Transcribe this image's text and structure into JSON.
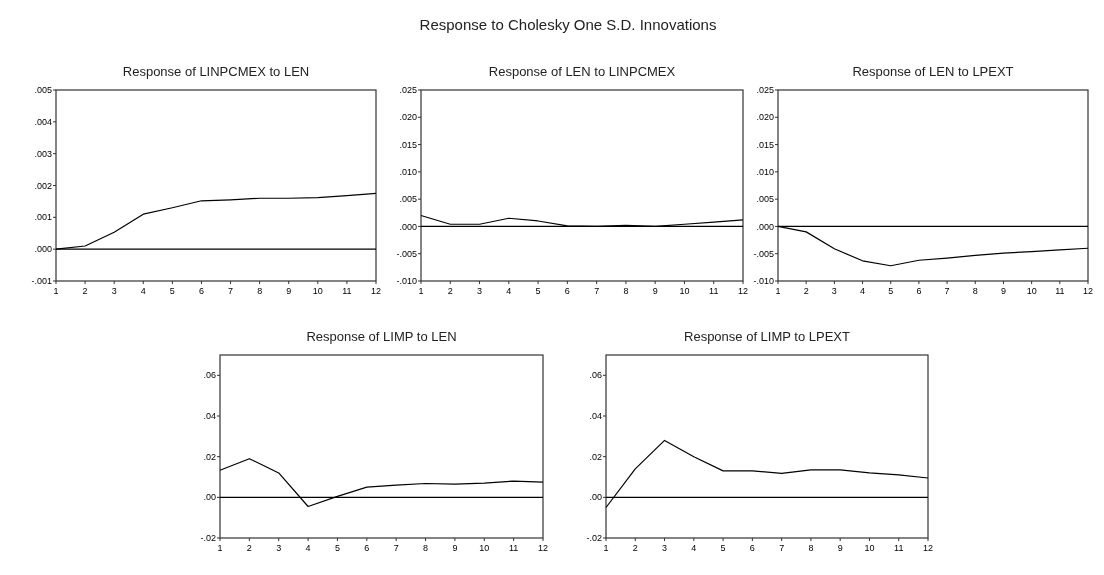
{
  "chart_data": [
    {
      "type": "line",
      "title": "Response of LINPCMEX to LEN",
      "annotations": [
        "Response to Cholesky One S.D. Innovations"
      ],
      "x": [
        1,
        2,
        3,
        4,
        5,
        6,
        7,
        8,
        9,
        10,
        11,
        12
      ],
      "xlim": [
        1,
        12
      ],
      "xticks": [
        1,
        2,
        3,
        4,
        5,
        6,
        7,
        8,
        9,
        10,
        11,
        12
      ],
      "ylim": [
        -0.001,
        0.005
      ],
      "yticks": [
        {
          "value": -0.001,
          "label": "-.001"
        },
        {
          "value": 0,
          "label": ".000"
        },
        {
          "value": 0.001,
          "label": ".001"
        },
        {
          "value": 0.002,
          "label": ".002"
        },
        {
          "value": 0.003,
          "label": ".003"
        },
        {
          "value": 0.004,
          "label": ".004"
        },
        {
          "value": 0.005,
          "label": ".005"
        }
      ],
      "series": [
        {
          "color": "#000000",
          "values": [
            0.0,
            0.0001,
            0.00053,
            0.0011,
            0.0013,
            0.00152,
            0.00155,
            0.0016,
            0.0016,
            0.00162,
            0.00168,
            0.00175
          ]
        }
      ],
      "ref_lines": [
        {
          "axis": "y",
          "value": 0,
          "color": "#000000"
        }
      ]
    },
    {
      "type": "line",
      "title": "Response of LEN to LINPCMEX",
      "x": [
        1,
        2,
        3,
        4,
        5,
        6,
        7,
        8,
        9,
        10,
        11,
        12
      ],
      "xlim": [
        1,
        12
      ],
      "xticks": [
        1,
        2,
        3,
        4,
        5,
        6,
        7,
        8,
        9,
        10,
        11,
        12
      ],
      "ylim": [
        -0.01,
        0.025
      ],
      "yticks": [
        {
          "value": -0.01,
          "label": "-.010"
        },
        {
          "value": -0.005,
          "label": "-.005"
        },
        {
          "value": 0,
          "label": ".000"
        },
        {
          "value": 0.005,
          "label": ".005"
        },
        {
          "value": 0.01,
          "label": ".010"
        },
        {
          "value": 0.015,
          "label": ".015"
        },
        {
          "value": 0.02,
          "label": ".020"
        },
        {
          "value": 0.025,
          "label": ".025"
        }
      ],
      "series": [
        {
          "color": "#000000",
          "values": [
            0.002,
            0.0004,
            0.0004,
            0.0015,
            0.001,
            0.0001,
            0.0,
            0.0002,
            0.0,
            0.0004,
            0.0008,
            0.0012
          ]
        }
      ],
      "ref_lines": [
        {
          "axis": "y",
          "value": 0,
          "color": "#000000"
        }
      ]
    },
    {
      "type": "line",
      "title": "Response of LEN to LPEXT",
      "x": [
        1,
        2,
        3,
        4,
        5,
        6,
        7,
        8,
        9,
        10,
        11,
        12
      ],
      "xlim": [
        1,
        12
      ],
      "xticks": [
        1,
        2,
        3,
        4,
        5,
        6,
        7,
        8,
        9,
        10,
        11,
        12
      ],
      "ylim": [
        -0.01,
        0.025
      ],
      "yticks": [
        {
          "value": -0.01,
          "label": "-.010"
        },
        {
          "value": -0.005,
          "label": "-.005"
        },
        {
          "value": 0,
          "label": ".000"
        },
        {
          "value": 0.005,
          "label": ".005"
        },
        {
          "value": 0.01,
          "label": ".010"
        },
        {
          "value": 0.015,
          "label": ".015"
        },
        {
          "value": 0.02,
          "label": ".020"
        },
        {
          "value": 0.025,
          "label": ".025"
        }
      ],
      "series": [
        {
          "color": "#000000",
          "values": [
            0.0,
            -0.001,
            -0.0041,
            -0.0063,
            -0.0072,
            -0.0062,
            -0.0058,
            -0.0053,
            -0.0049,
            -0.0046,
            -0.0043,
            -0.004
          ]
        }
      ],
      "ref_lines": [
        {
          "axis": "y",
          "value": 0,
          "color": "#000000"
        }
      ]
    },
    {
      "type": "line",
      "title": "Response of LIMP to LEN",
      "x": [
        1,
        2,
        3,
        4,
        5,
        6,
        7,
        8,
        9,
        10,
        11,
        12
      ],
      "xlim": [
        1,
        12
      ],
      "xticks": [
        1,
        2,
        3,
        4,
        5,
        6,
        7,
        8,
        9,
        10,
        11,
        12
      ],
      "ylim": [
        -0.02,
        0.07
      ],
      "yticks": [
        {
          "value": -0.02,
          "label": "-.02"
        },
        {
          "value": 0,
          "label": ".00"
        },
        {
          "value": 0.02,
          "label": ".02"
        },
        {
          "value": 0.04,
          "label": ".04"
        },
        {
          "value": 0.06,
          "label": ".06"
        }
      ],
      "series": [
        {
          "color": "#000000",
          "values": [
            0.0133,
            0.019,
            0.012,
            -0.0045,
            0.0005,
            0.005,
            0.006,
            0.0068,
            0.0065,
            0.007,
            0.008,
            0.0075
          ]
        }
      ],
      "ref_lines": [
        {
          "axis": "y",
          "value": 0,
          "color": "#000000"
        }
      ]
    },
    {
      "type": "line",
      "title": "Response of LIMP to LPEXT",
      "x": [
        1,
        2,
        3,
        4,
        5,
        6,
        7,
        8,
        9,
        10,
        11,
        12
      ],
      "xlim": [
        1,
        12
      ],
      "xticks": [
        1,
        2,
        3,
        4,
        5,
        6,
        7,
        8,
        9,
        10,
        11,
        12
      ],
      "ylim": [
        -0.02,
        0.07
      ],
      "yticks": [
        {
          "value": -0.02,
          "label": "-.02"
        },
        {
          "value": 0,
          "label": ".00"
        },
        {
          "value": 0.02,
          "label": ".02"
        },
        {
          "value": 0.04,
          "label": ".04"
        },
        {
          "value": 0.06,
          "label": ".06"
        }
      ],
      "series": [
        {
          "color": "#000000",
          "values": [
            -0.005,
            0.014,
            0.028,
            0.02,
            0.013,
            0.013,
            0.0118,
            0.0135,
            0.0135,
            0.012,
            0.011,
            0.0095
          ]
        }
      ],
      "ref_lines": [
        {
          "axis": "y",
          "value": 0,
          "color": "#000000"
        }
      ]
    }
  ]
}
